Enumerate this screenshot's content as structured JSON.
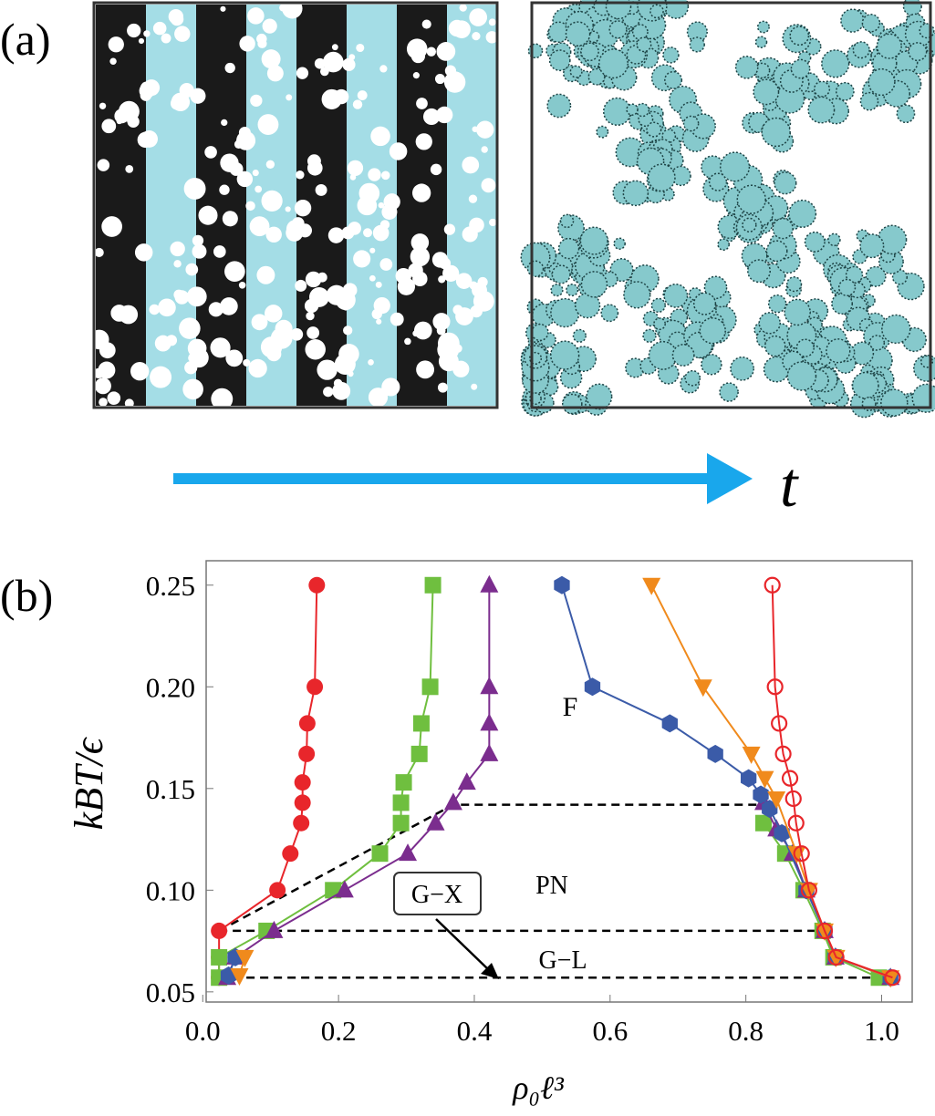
{
  "panel_a": {
    "label": "(a)",
    "arrow_label": "t"
  },
  "chart_data": {
    "type": "line",
    "panel_label": "(b)",
    "x_label": "ρ₀ℓ³",
    "y_label": "kBT/ϵ",
    "xlim": [
      0.005,
      1.045
    ],
    "ylim": [
      0.045,
      0.262
    ],
    "xticks": [
      {
        "value": 0,
        "label": "0.0"
      },
      0.2,
      0.4,
      0.6,
      0.8,
      {
        "value": 1,
        "label": "1.0"
      }
    ],
    "yticks": [
      0.05,
      {
        "value": 0.1,
        "label": "0.10"
      },
      0.15,
      {
        "value": 0.2,
        "label": "0.20"
      },
      0.25
    ],
    "annotations": [
      "F",
      "PN",
      "G−X",
      "G−L"
    ],
    "series": [
      {
        "color": "#e8262b",
        "marker": "circle",
        "x": [
          0.168,
          0.165,
          0.154,
          0.153,
          0.147,
          0.147,
          0.145,
          0.129,
          0.11,
          0.024,
          0.024,
          0.024,
          null,
          0.889
        ],
        "values": [
          0.25,
          0.2,
          0.182,
          0.167,
          0.153,
          0.143,
          0.133,
          0.118,
          0.1,
          0.08,
          0.067,
          0.057,
          null,
          0.1
        ]
      },
      {
        "color": "#6fbf3f",
        "marker": "square",
        "x": [
          0.339,
          0.335,
          0.322,
          0.319,
          0.296,
          0.292,
          0.292,
          0.261,
          0.192,
          0.094,
          0.024,
          0.024,
          null,
          0.826,
          0.858,
          0.885,
          0.913,
          0.929,
          0.996
        ],
        "values": [
          0.25,
          0.2,
          0.182,
          0.167,
          0.153,
          0.143,
          0.133,
          0.118,
          0.1,
          0.08,
          0.067,
          0.057,
          null,
          0.133,
          0.118,
          0.1,
          0.08,
          0.067,
          0.057
        ]
      },
      {
        "color": "#7b2d8e",
        "marker": "triangle",
        "x": [
          0.422,
          0.422,
          0.422,
          0.422,
          0.389,
          0.369,
          0.343,
          0.302,
          0.209,
          0.105,
          0.048,
          0.036,
          null,
          0.826,
          0.845,
          0.869,
          0.889,
          0.916,
          0.932,
          1.013
        ],
        "values": [
          0.25,
          0.2,
          0.182,
          0.167,
          0.153,
          0.143,
          0.133,
          0.118,
          0.1,
          0.08,
          0.067,
          0.057,
          null,
          0.143,
          0.13,
          0.118,
          0.1,
          0.08,
          0.067,
          0.057
        ]
      },
      {
        "color": "#3b5ba8",
        "marker": "hexagon",
        "x": [
          0.048,
          0.038,
          null,
          0.529,
          0.574,
          0.688,
          0.755,
          0.804,
          0.822,
          0.835,
          0.853,
          0.889,
          0.916,
          0.932,
          1.013
        ],
        "values": [
          0.067,
          0.058,
          null,
          0.25,
          0.2,
          0.182,
          0.167,
          0.155,
          0.147,
          0.14,
          0.128,
          0.1,
          0.08,
          0.067,
          0.057
        ]
      },
      {
        "color": "#f08a1c",
        "marker": "down-triangle",
        "x": [
          0.062,
          0.054,
          null,
          0.661,
          0.737,
          0.808,
          0.828,
          0.845,
          0.875,
          0.893,
          0.916,
          0.933,
          1.013
        ],
        "values": [
          0.067,
          0.058,
          null,
          0.25,
          0.2,
          0.167,
          0.155,
          0.145,
          0.118,
          0.1,
          0.08,
          0.067,
          0.057
        ]
      },
      {
        "color": "#e8262b",
        "marker": "open-circle",
        "x": [
          0.839,
          0.843,
          0.849,
          0.855,
          0.865,
          0.87,
          0.874,
          0.882,
          0.893,
          0.916,
          0.933,
          1.016
        ],
        "values": [
          0.25,
          0.2,
          0.182,
          0.167,
          0.155,
          0.145,
          0.133,
          0.118,
          0.1,
          0.08,
          0.067,
          0.057
        ]
      }
    ],
    "reference_lines": [
      {
        "x": [
          0.024,
          0.369,
          0.826
        ],
        "values": [
          0.08,
          0.142,
          0.142
        ]
      },
      {
        "x": [
          0.024,
          0.916
        ],
        "values": [
          0.08,
          0.08
        ]
      },
      {
        "x": [
          0.024,
          1.013
        ],
        "values": [
          0.057,
          0.057
        ]
      }
    ]
  }
}
